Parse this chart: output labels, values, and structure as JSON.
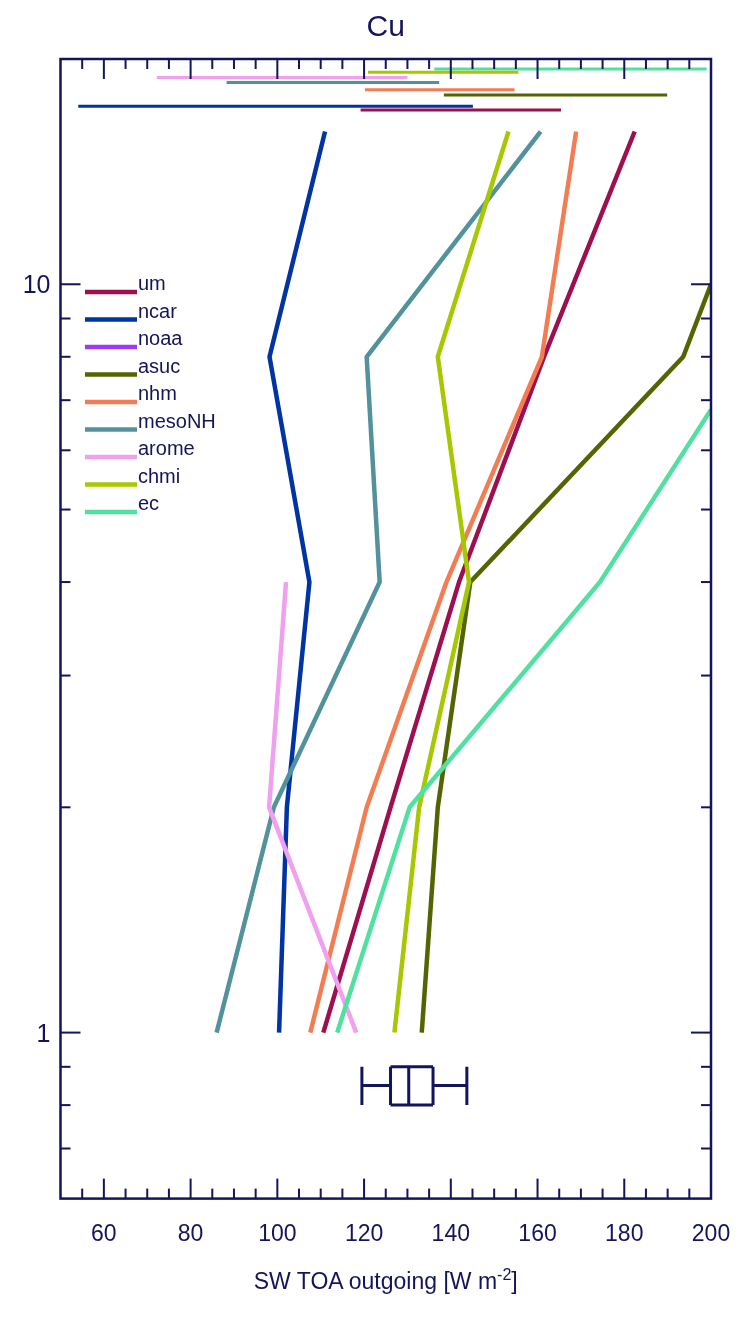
{
  "chart_data": {
    "type": "line",
    "title": "Cu",
    "xlabel": "SW TOA outgoing [W m$^{-2}$]",
    "log": "y",
    "legend": "top left",
    "xlim": [
      50,
      200
    ],
    "ylim": [
      0.6,
      20
    ],
    "xticks": [
      {
        "value": 55,
        "label": null
      },
      60,
      {
        "value": 65,
        "label": null
      },
      {
        "value": 70,
        "label": null
      },
      {
        "value": 75,
        "label": null
      },
      80,
      {
        "value": 85,
        "label": null
      },
      {
        "value": 90,
        "label": null
      },
      {
        "value": 95,
        "label": null
      },
      100,
      {
        "value": 105,
        "label": null
      },
      {
        "value": 110,
        "label": null
      },
      {
        "value": 115,
        "label": null
      },
      120,
      {
        "value": 125,
        "label": null
      },
      {
        "value": 130,
        "label": null
      },
      {
        "value": 135,
        "label": null
      },
      140,
      {
        "value": 145,
        "label": null
      },
      {
        "value": 150,
        "label": null
      },
      {
        "value": 155,
        "label": null
      },
      160,
      {
        "value": 165,
        "label": null
      },
      {
        "value": 170,
        "label": null
      },
      {
        "value": 175,
        "label": null
      },
      180,
      {
        "value": 185,
        "label": null
      },
      {
        "value": 190,
        "label": null
      },
      {
        "value": 195,
        "label": null
      },
      200
    ],
    "yticks": [
      {
        "value": 0.7,
        "label": null
      },
      {
        "value": 0.8,
        "label": null
      },
      {
        "value": 0.9,
        "label": null
      },
      1,
      {
        "value": 2,
        "label": null
      },
      {
        "value": 3,
        "label": null
      },
      {
        "value": 4,
        "label": null
      },
      {
        "value": 5,
        "label": null
      },
      {
        "value": 6,
        "label": null
      },
      {
        "value": 7,
        "label": null
      },
      {
        "value": 8,
        "label": null
      },
      {
        "value": 9,
        "label": null
      },
      10,
      {
        "value": 20,
        "label": null
      }
    ],
    "series": [
      {
        "name": "um",
        "color": "#9e0f4f",
        "x": [
          110.6,
          126.1,
          141.9,
          161.5,
          182.4
        ],
        "values": [
          1,
          2,
          4,
          8,
          16
        ]
      },
      {
        "name": "ncar",
        "color": "#0033a3",
        "x": [
          100.4,
          102.2,
          107.4,
          98.2,
          111.0
        ],
        "values": [
          1,
          2,
          4,
          8,
          16
        ]
      },
      {
        "name": "noaa",
        "color": "#9b3bf5"
      },
      {
        "name": "asuc",
        "color": "#536400",
        "x": [
          133.3,
          137.0,
          144.5,
          193.6,
          200
        ],
        "values": [
          1,
          2,
          4,
          8,
          10
        ]
      },
      {
        "name": "nhm",
        "color": "#f47c52",
        "x": [
          107.6,
          120.6,
          139.0,
          161.0,
          168.9
        ],
        "values": [
          1,
          2,
          4,
          8,
          16
        ]
      },
      {
        "name": "mesoNH",
        "color": "#52929d",
        "x": [
          86.0,
          99.2,
          123.6,
          120.6,
          160.7
        ],
        "values": [
          1,
          2,
          4,
          8,
          16
        ]
      },
      {
        "name": "arome",
        "color": "#f0a0ee",
        "x": [
          118.2,
          98.1,
          102.0
        ],
        "values": [
          1,
          2,
          4
        ]
      },
      {
        "name": "chmi",
        "color": "#a6c800",
        "x": [
          127.0,
          132.7,
          144.2,
          137.0,
          153.3
        ],
        "values": [
          1,
          2,
          4,
          8,
          16
        ]
      },
      {
        "name": "ec",
        "color": "#50e0a0",
        "x": [
          113.8,
          130.5,
          174.4,
          200
        ],
        "values": [
          1,
          2,
          4,
          6.8
        ]
      },
      {
        "color": "#50e0a0",
        "x": [
          136.2,
          199.0
        ],
        "values": [
          19.4,
          19.4
        ]
      },
      {
        "color": "#a6c800",
        "x": [
          120.9,
          155.6
        ],
        "values": [
          19.2,
          19.2
        ]
      },
      {
        "color": "#f0a0ee",
        "x": [
          72.2,
          130.0
        ],
        "values": [
          18.9,
          18.9
        ]
      },
      {
        "color": "#52929d",
        "x": [
          88.3,
          137.3
        ],
        "values": [
          18.6,
          18.6
        ]
      },
      {
        "color": "#f47c52",
        "x": [
          120.2,
          154.7
        ],
        "values": [
          18.2,
          18.2
        ]
      },
      {
        "color": "#536400",
        "x": [
          138.4,
          189.9
        ],
        "values": [
          17.9,
          17.9
        ]
      },
      {
        "color": "#0033a3",
        "x": [
          54.1,
          145.1
        ],
        "values": [
          17.3,
          17.3
        ]
      },
      {
        "color": "#9e0f4f",
        "x": [
          119.2,
          165.4
        ],
        "values": [
          17.1,
          17.1
        ]
      },
      {
        "color": "#14145a",
        "x": [
          119.5,
          126.1
        ],
        "values": [
          0.85,
          0.85
        ]
      },
      {
        "color": "#14145a",
        "x": [
          135.9,
          143.7
        ],
        "values": [
          0.85,
          0.85
        ]
      },
      {
        "color": "#14145a",
        "x": [
          119.5,
          119.5
        ],
        "values": [
          0.8,
          0.9
        ]
      },
      {
        "color": "#14145a",
        "x": [
          143.7,
          143.7
        ],
        "values": [
          0.8,
          0.9
        ]
      },
      {
        "color": "#14145a",
        "x": [
          126.1,
          135.9
        ],
        "values": [
          0.8,
          0.8
        ]
      },
      {
        "color": "#14145a",
        "x": [
          126.1,
          135.9
        ],
        "values": [
          0.9,
          0.9
        ]
      },
      {
        "color": "#14145a",
        "x": [
          126.1,
          126.1
        ],
        "values": [
          0.8,
          0.9
        ]
      },
      {
        "color": "#14145a",
        "x": [
          135.9,
          135.9
        ],
        "values": [
          0.8,
          0.9
        ]
      },
      {
        "color": "#14145a",
        "x": [
          130.3,
          130.3
        ],
        "values": [
          0.8,
          0.9
        ]
      }
    ]
  }
}
